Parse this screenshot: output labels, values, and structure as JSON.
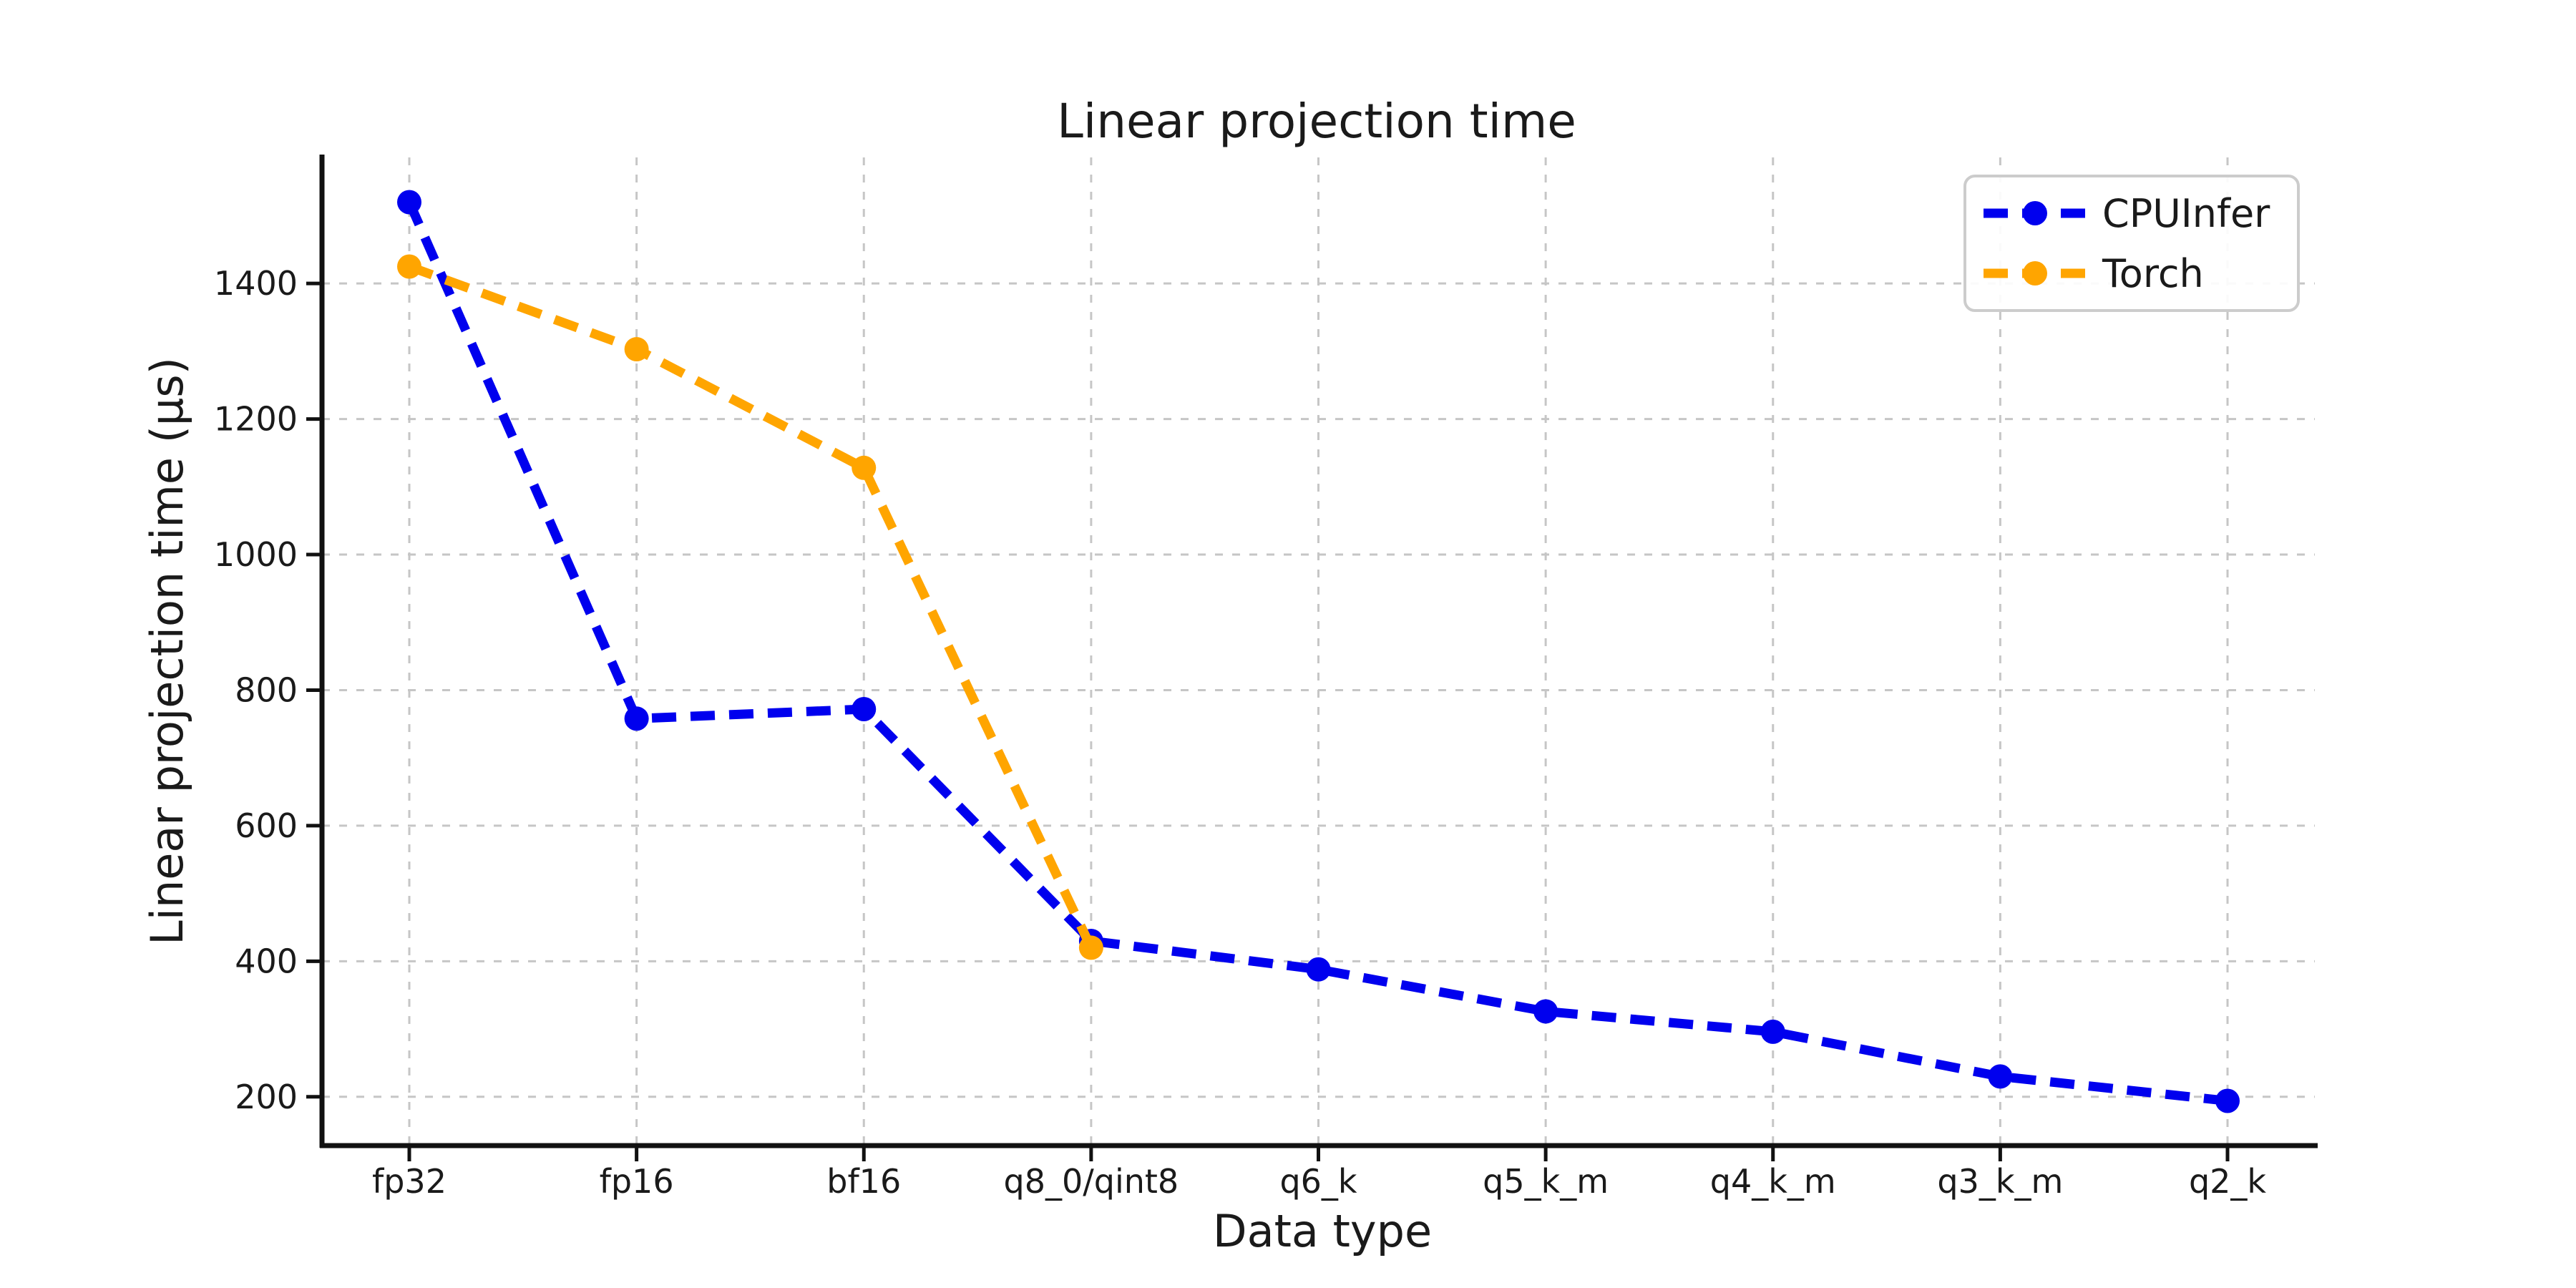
{
  "figure": {
    "title": "Linear projection time",
    "xlabel": "Data type",
    "ylabel": "Linear projection time (µs)"
  },
  "legend": {
    "position": "upper right",
    "entries": [
      {
        "label": "CPUInfer",
        "color": "#0000ee"
      },
      {
        "label": "Torch",
        "color": "#ffa500"
      }
    ]
  },
  "chart_data": {
    "type": "line",
    "title": "Linear projection time",
    "xlabel": "Data type",
    "ylabel": "Linear projection time (µs)",
    "categories": [
      "fp32",
      "fp16",
      "bf16",
      "q8_0/qint8",
      "q6_k",
      "q5_k_m",
      "q4_k_m",
      "q3_k_m",
      "q2_k"
    ],
    "series": [
      {
        "name": "CPUInfer",
        "color": "#0000ee",
        "linestyle": "dashed",
        "marker": "circle",
        "values": [
          1520,
          758,
          772,
          430,
          388,
          326,
          296,
          230,
          194
        ]
      },
      {
        "name": "Torch",
        "color": "#ffa500",
        "linestyle": "dashed",
        "marker": "circle",
        "values": [
          1425,
          1303,
          1128,
          420,
          null,
          null,
          null,
          null,
          null
        ]
      }
    ],
    "yticks": [
      200,
      400,
      600,
      800,
      1000,
      1200,
      1400
    ],
    "ylim": [
      128,
      1586
    ],
    "grid": true,
    "legend_position": "upper right"
  },
  "style": {
    "grid_color": "#c6c6c6",
    "spine_color": "#111111",
    "text_color": "#1a1a1a",
    "legend_border_color": "#cccccc",
    "background_color": "#ffffff"
  }
}
